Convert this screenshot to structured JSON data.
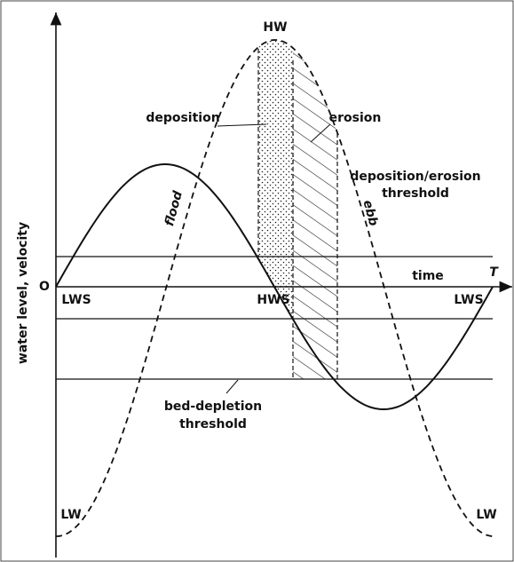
{
  "labels": {
    "hw": "HW",
    "deposition": "deposition",
    "erosion": "erosion",
    "threshold_upper_1": "deposition/erosion",
    "threshold_upper_2": "threshold",
    "flood": "flood",
    "ebb": "ebb",
    "time": "time",
    "period": "T",
    "origin": "O",
    "lws_left": "LWS",
    "hws": "HWS",
    "lws_right": "LWS",
    "threshold_lower_1": "bed-depletion",
    "threshold_lower_2": "threshold",
    "lw_left": "LW",
    "lw_right": "LW",
    "y_axis": "water level, velocity"
  }
}
